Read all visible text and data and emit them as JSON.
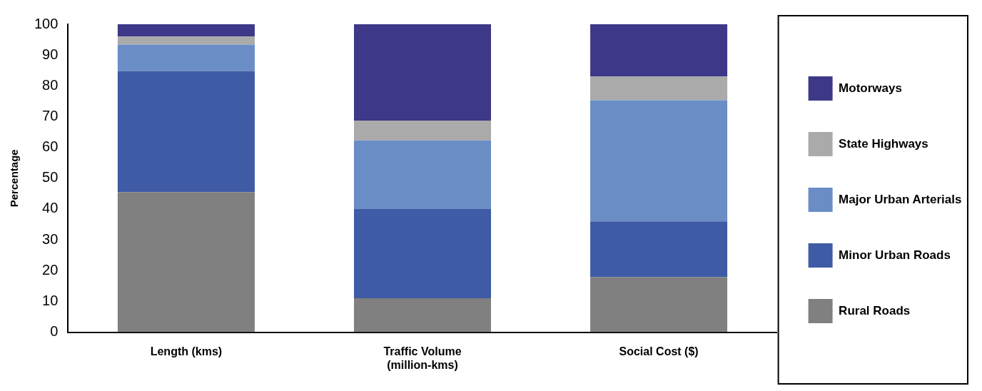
{
  "chart_data": {
    "type": "bar",
    "stacked": true,
    "ylabel": "Percentage",
    "categories": [
      "Length (kms)",
      "Traffic Volume (million-kms)",
      "Social Cost ($)"
    ],
    "series": [
      {
        "name": "Rural Roads",
        "color": "#808080",
        "values": [
          45.5,
          11.0,
          17.9
        ]
      },
      {
        "name": "Minor Urban Roads",
        "color": "#3f5ba5",
        "values": [
          39.3,
          29.0,
          18.1
        ]
      },
      {
        "name": "Major Urban Arterials",
        "color": "#6a8dc6",
        "values": [
          8.6,
          22.3,
          39.3
        ]
      },
      {
        "name": "State Highways",
        "color": "#aaaaaa",
        "values": [
          2.6,
          6.4,
          7.7
        ]
      },
      {
        "name": "Motorways",
        "color": "#3d3887",
        "values": [
          4.0,
          31.3,
          17.0
        ]
      }
    ],
    "ylim": [
      0,
      100
    ],
    "yticks": [
      0,
      10,
      20,
      30,
      40,
      50,
      60,
      70,
      80,
      90,
      100
    ],
    "grid": false,
    "legend": "right"
  }
}
